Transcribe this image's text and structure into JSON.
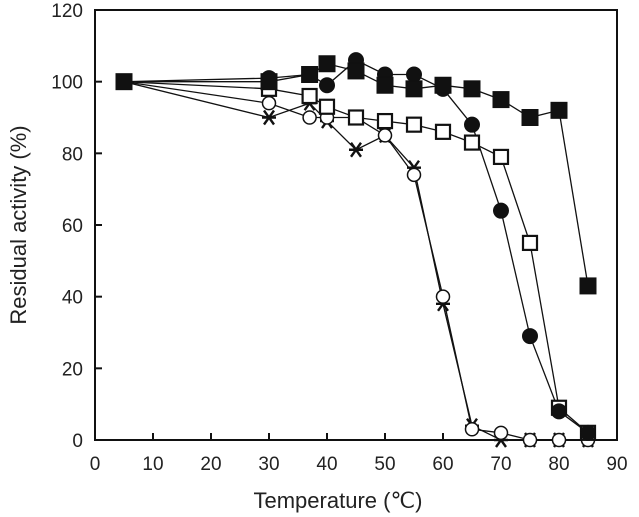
{
  "chart_data": {
    "type": "line",
    "title": "",
    "xlabel": "Temperature (℃)",
    "ylabel": "Residual activity (%)",
    "xlim": [
      0,
      90
    ],
    "ylim": [
      0,
      120
    ],
    "xticks": [
      0,
      10,
      20,
      30,
      40,
      50,
      60,
      70,
      80,
      90
    ],
    "yticks": [
      0,
      20,
      40,
      60,
      80,
      100,
      120
    ],
    "grid": false,
    "legend": "none",
    "series": [
      {
        "marker": "filled-square",
        "x": [
          5,
          30,
          37,
          40,
          45,
          50,
          55,
          60,
          65,
          70,
          75,
          80,
          85
        ],
        "y": [
          100,
          100,
          102,
          105,
          103,
          99,
          98,
          99,
          98,
          95,
          90,
          92,
          43
        ]
      },
      {
        "marker": "filled-circle",
        "x": [
          5,
          30,
          37,
          40,
          45,
          50,
          55,
          60,
          65,
          70,
          75,
          80,
          85
        ],
        "y": [
          100,
          101,
          102,
          99,
          106,
          102,
          102,
          98,
          88,
          64,
          29,
          8,
          2
        ]
      },
      {
        "marker": "open-square",
        "x": [
          5,
          30,
          37,
          40,
          45,
          50,
          55,
          60,
          65,
          70,
          75,
          80,
          85
        ],
        "y": [
          100,
          98,
          96,
          93,
          90,
          89,
          88,
          86,
          83,
          79,
          55,
          9,
          2
        ]
      },
      {
        "marker": "open-circle",
        "x": [
          5,
          30,
          37,
          40,
          45,
          50,
          55,
          60,
          65,
          70,
          75,
          80,
          85
        ],
        "y": [
          100,
          94,
          90,
          90,
          90,
          85,
          74,
          40,
          3,
          2,
          0,
          0,
          0
        ]
      },
      {
        "marker": "asterisk",
        "x": [
          5,
          30,
          37,
          40,
          45,
          50,
          55,
          60,
          65,
          70,
          75,
          80,
          85
        ],
        "y": [
          100,
          90,
          94,
          89,
          81,
          85,
          76,
          38,
          4,
          0,
          0,
          0,
          0
        ]
      }
    ]
  }
}
